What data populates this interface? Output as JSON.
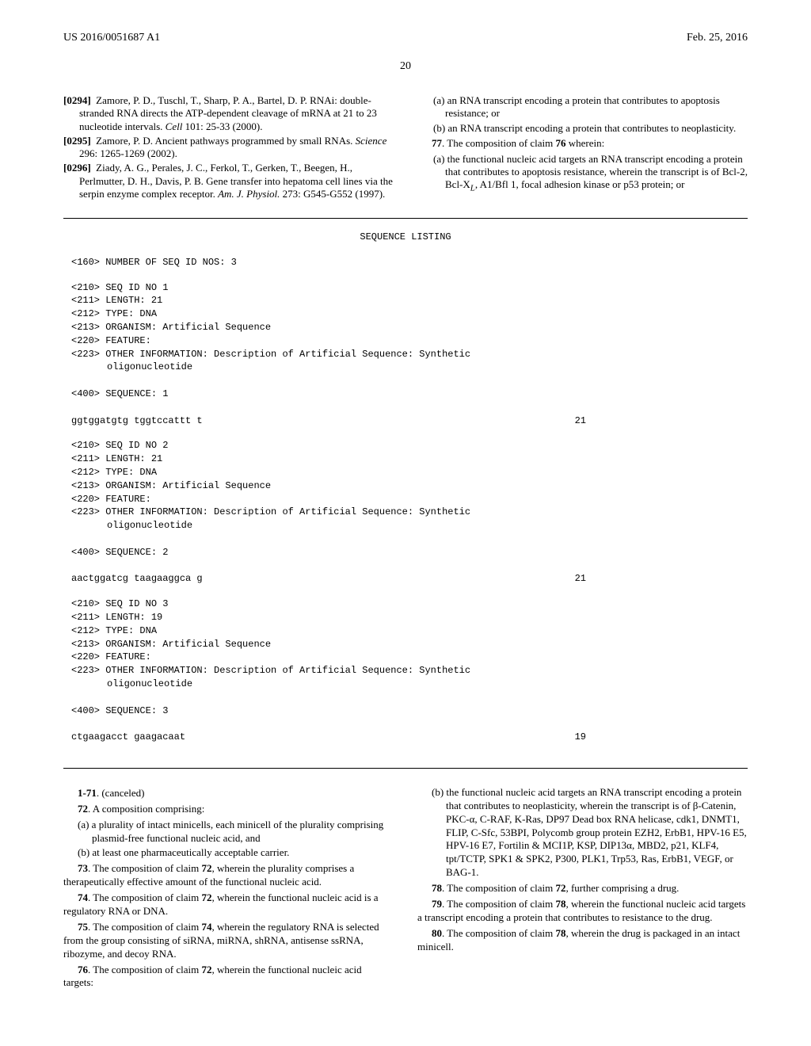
{
  "header": {
    "left": "US 2016/0051687 A1",
    "right": "Feb. 25, 2016"
  },
  "pageNumber": "20",
  "leftColTop": {
    "refs": [
      {
        "num": "[0294]",
        "text": "Zamore, P. D., Tuschl, T., Sharp, P. A., Bartel, D. P. RNAi: double-stranded RNA directs the ATP-dependent cleavage of mRNA at 21 to 23 nucleotide intervals. ",
        "italic": "Cell",
        "tail": " 101: 25-33 (2000)."
      },
      {
        "num": "[0295]",
        "text": "Zamore, P. D. Ancient pathways programmed by small RNAs. ",
        "italic": "Science",
        "tail": " 296: 1265-1269 (2002)."
      },
      {
        "num": "[0296]",
        "text": "Ziady, A. G., Perales, J. C., Ferkol, T., Gerken, T., Beegen, H., Perlmutter, D. H., Davis, P. B. Gene transfer into hepatoma cell lines via the serpin enzyme complex receptor. ",
        "italic": "Am. J. Physiol.",
        "tail": " 273: G545-G552 (1997)."
      }
    ]
  },
  "rightColTop": {
    "items": [
      {
        "label": "(a)",
        "text": " an RNA transcript encoding a protein that contributes to apoptosis resistance; or"
      },
      {
        "label": "(b)",
        "text": " an RNA transcript encoding a protein that contributes to neoplasticity."
      }
    ],
    "claim77_intro": "The composition of claim ",
    "claim77_num": "77",
    "claim77_ref": "76",
    "claim77_tail": " wherein:",
    "claim77_a": {
      "label": "(a)",
      "text": " the functional nucleic acid targets an RNA transcript encoding a protein that contributes to apoptosis resistance, wherein the transcript is of Bcl-2, Bcl-X",
      "sub": "L",
      "tail": ", A1/Bfl 1, focal adhesion kinase or p53 protein; or"
    }
  },
  "sequenceListing": {
    "title": "SEQUENCE LISTING",
    "numSeqs": "<160> NUMBER OF SEQ ID NOS: 3",
    "seqs": [
      {
        "header": [
          "<210> SEQ ID NO 1",
          "<211> LENGTH: 21",
          "<212> TYPE: DNA",
          "<213> ORGANISM: Artificial Sequence",
          "<220> FEATURE:",
          "<223> OTHER INFORMATION: Description of Artificial Sequence: Synthetic"
        ],
        "indent": "oligonucleotide",
        "seqLabel": "<400> SEQUENCE: 1",
        "sequence": "ggtggatgtg tggtccattt t",
        "length": "21"
      },
      {
        "header": [
          "<210> SEQ ID NO 2",
          "<211> LENGTH: 21",
          "<212> TYPE: DNA",
          "<213> ORGANISM: Artificial Sequence",
          "<220> FEATURE:",
          "<223> OTHER INFORMATION: Description of Artificial Sequence: Synthetic"
        ],
        "indent": "oligonucleotide",
        "seqLabel": "<400> SEQUENCE: 2",
        "sequence": "aactggatcg taagaaggca g",
        "length": "21"
      },
      {
        "header": [
          "<210> SEQ ID NO 3",
          "<211> LENGTH: 19",
          "<212> TYPE: DNA",
          "<213> ORGANISM: Artificial Sequence",
          "<220> FEATURE:",
          "<223> OTHER INFORMATION: Description of Artificial Sequence: Synthetic"
        ],
        "indent": "oligonucleotide",
        "seqLabel": "<400> SEQUENCE: 3",
        "sequence": "ctgaagacct gaagacaat",
        "length": "19"
      }
    ]
  },
  "claimsLeft": [
    {
      "type": "para",
      "num": "1-71",
      "text": ". (canceled)"
    },
    {
      "type": "para",
      "num": "72",
      "text": ". A composition comprising:"
    },
    {
      "type": "sub",
      "label": "(a)",
      "text": " a plurality of intact minicells, each minicell of the plurality comprising plasmid-free functional nucleic acid, and"
    },
    {
      "type": "sub",
      "label": "(b)",
      "text": " at least one pharmaceutically acceptable carrier."
    },
    {
      "type": "para",
      "num": "73",
      "text": ". The composition of claim ",
      "refnum": "72",
      "tail": ", wherein the plurality comprises a therapeutically effective amount of the functional nucleic acid."
    },
    {
      "type": "para",
      "num": "74",
      "text": ". The composition of claim ",
      "refnum": "72",
      "tail": ", wherein the functional nucleic acid is a regulatory RNA or DNA."
    },
    {
      "type": "para",
      "num": "75",
      "text": ". The composition of claim ",
      "refnum": "74",
      "tail": ", wherein the regulatory RNA is selected from the group consisting of siRNA, miRNA, shRNA, antisense ssRNA, ribozyme, and decoy RNA."
    },
    {
      "type": "para",
      "num": "76",
      "text": ". The composition of claim ",
      "refnum": "72",
      "tail": ", wherein the functional nucleic acid targets:"
    }
  ],
  "claimsRight": [
    {
      "type": "sub",
      "label": "(b)",
      "text": " the functional nucleic acid targets an RNA transcript encoding a protein that contributes to neoplasticity, wherein the transcript is of β-Catenin, PKC-α, C-RAF, K-Ras, DP97 Dead box RNA helicase, cdk1, DNMT1, FLIP, C-Sfc, 53BPI, Polycomb group protein EZH2, ErbB1, HPV-16 E5, HPV-16 E7, Fortilin & MCI1P, KSP, DIP13α, MBD2, p21, KLF4, tpt/TCTP, SPK1 & SPK2, P300, PLK1, Trp53, Ras, ErbB1, VEGF, or BAG-1."
    },
    {
      "type": "para",
      "num": "78",
      "text": ". The composition of claim ",
      "refnum": "72",
      "tail": ", further comprising a drug."
    },
    {
      "type": "para",
      "num": "79",
      "text": ". The composition of claim ",
      "refnum": "78",
      "tail": ", wherein the functional nucleic acid targets a transcript encoding a protein that contributes to resistance to the drug."
    },
    {
      "type": "para",
      "num": "80",
      "text": ". The composition of claim ",
      "refnum": "78",
      "tail": ", wherein the drug is packaged in an intact minicell."
    }
  ]
}
